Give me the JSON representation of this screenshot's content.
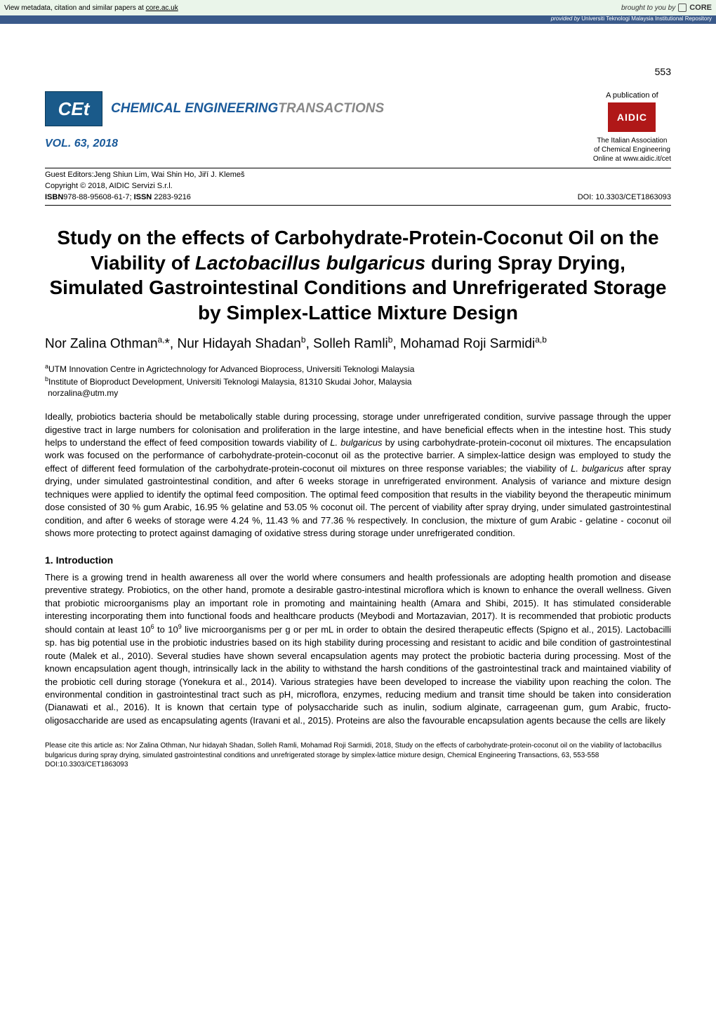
{
  "banner": {
    "metadata_text": "View metadata, citation and similar papers at ",
    "metadata_link": "core.ac.uk",
    "brought_by": "brought to you by ",
    "core_label": "CORE",
    "provided_prefix": "provided by ",
    "provided_by": "Universiti Teknologi Malaysia Institutional Repository"
  },
  "header": {
    "page_number": "553",
    "logo_text": "CEt",
    "journal_blue": "CHEMICAL ENGINEERING",
    "journal_grey": "TRANSACTIONS",
    "volume": "VOL. 63, 2018",
    "pub_label": "A publication of",
    "aidic_logo": "AIDIC",
    "aidic_line1": "The Italian Association",
    "aidic_line2": "of Chemical Engineering",
    "aidic_line3": "Online at www.aidic.it/cet",
    "editors_label": "Guest Editors:",
    "editors": "Jeng Shiun Lim, Wai Shin Ho, Jiří J. Klemeš",
    "copyright": "Copyright © 2018, AIDIC Servizi S.r.l.",
    "isbn_label": "ISBN",
    "isbn": "978-88-95608-61-7; ",
    "issn_label": "ISSN",
    "issn": " 2283-9216",
    "doi": "DOI: 10.3303/CET1863093"
  },
  "paper": {
    "title_pre": "Study on the effects of Carbohydrate-Protein-Coconut Oil on the Viability of ",
    "title_italic": "Lactobacillus bulgaricus",
    "title_post": " during Spray Drying, Simulated Gastrointestinal Conditions and Unrefrigerated Storage by Simplex-Lattice Mixture Design",
    "authors_html": "Nor Zalina Othman<sup>a,</sup>*, Nur Hidayah Shadan<sup>b</sup>, Solleh Ramli<sup>b</sup>, Mohamad Roji Sarmidi<sup>a,b</sup>",
    "aff_a": "UTM Innovation Centre in Agrictechnology for Advanced Bioprocess, Universiti Teknologi Malaysia",
    "aff_b": "Institute of Bioproduct Development, Universiti Teknologi Malaysia, 81310 Skudai Johor, Malaysia",
    "email": "norzalina@utm.my",
    "abstract_p1": "Ideally, probiotics bacteria should be metabolically stable during processing, storage under unrefrigerated condition, survive passage through the upper digestive tract in large numbers for colonisation and proliferation in the large intestine, and have beneficial effects when in the intestine host. This study helps to understand the effect of feed composition towards viability of ",
    "abstract_it1": "L. bulgaricus",
    "abstract_p2": " by using carbohydrate-protein-coconut oil mixtures. The encapsulation work was focused on the performance of carbohydrate-protein-coconut oil as the protective barrier. A simplex-lattice design was employed to study the effect of different feed formulation of the carbohydrate-protein-coconut oil mixtures on three response variables; the viability of ",
    "abstract_it2": "L. bulgaricus",
    "abstract_p3": " after spray drying, under simulated gastrointestinal condition, and after 6 weeks storage in unrefrigerated environment. Analysis of variance and mixture design techniques were applied to identify the optimal feed composition. The optimal feed composition that results in the viability beyond the therapeutic minimum dose consisted of 30 % gum Arabic, 16.95 % gelatine and 53.05 % coconut oil. The percent of viability after spray drying, under simulated gastrointestinal condition, and after 6 weeks of storage were   4.24 %, 11.43 % and 77.36 % respectively. In conclusion, the mixture of gum Arabic - gelatine - coconut oil shows more protecting to protect against damaging of oxidative stress during storage under unrefrigerated condition.",
    "section1": "1. Introduction",
    "intro_p1": "There is a growing trend in health awareness all over the world where consumers and health professionals are   adopting health promotion and disease preventive strategy. Probiotics, on the other hand, promote a desirable gastro-intestinal microflora which is known to enhance the overall wellness.  Given that probiotic microorganisms play an important role in promoting and maintaining health (Amara and Shibi, 2015).  It has stimulated considerable interesting incorporating them into functional foods and healthcare products (Meybodi and Mortazavian, 2017).   It is recommended that probiotic products should contain at least 10",
    "intro_sup1": "6",
    "intro_p2": " to 10",
    "intro_sup2": "9",
    "intro_p3": " live microorganisms per g or per mL in order to obtain the desired therapeutic effects (Spigno et al., 2015). Lactobacilli sp. has big potential use in the probiotic industries based on its high stability during processing and resistant to acidic and bile condition of gastrointestinal route (Malek et al., 2010). Several studies have shown several encapsulation agents may protect the probiotic bacteria during processing. Most of the known encapsulation agent though, intrinsically lack in the ability to withstand the harsh conditions of the gastrointestinal track and maintained viability of the probiotic cell during storage (Yonekura et al., 2014). Various strategies have been developed to increase the viability upon reaching the colon.  The environmental condition in gastrointestinal tract such as pH, microflora, enzymes, reducing medium and transit time should be taken into consideration (Dianawati et al., 2016).  It is known that certain type of polysaccharide such as inulin, sodium alginate, carrageenan gum, gum Arabic, fructo-oligosaccharide are used as encapsulating agents (Iravani et al., 2015). Proteins are also the favourable encapsulation agents because the cells are likely",
    "citation": "Please cite this article as: Nor Zalina Othman, Nur hidayah Shadan, Solleh Ramli, Mohamad Roji Sarmidi, 2018, Study on the effects of carbohydrate-protein-coconut oil on the viability of lactobacillus bulgaricus during spray drying, simulated gastrointestinal conditions and unrefrigerated storage by simplex-lattice mixture design, Chemical Engineering Transactions, 63, 553-558 DOI:10.3303/CET1863093"
  },
  "colors": {
    "banner_bg": "#eaf5ea",
    "subbanner_bg": "#3a5a8a",
    "cet_blue": "#1a5a8a",
    "aidic_red": "#b01818",
    "journal_blue": "#1a5a9a",
    "journal_grey": "#888888"
  }
}
